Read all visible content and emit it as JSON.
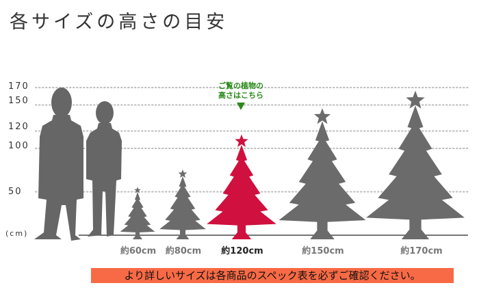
{
  "title": "各サイズの高さの目安",
  "axis": {
    "unit_label": "(cm)",
    "ticks": [
      "170",
      "150",
      "120",
      "100",
      "50"
    ]
  },
  "highlight_note": {
    "line1": "ご覧の植物の",
    "line2": "高さはこちら",
    "color": "#2a8a1a"
  },
  "trees": [
    {
      "label": "約60cm",
      "height_cm": 60,
      "highlighted": false
    },
    {
      "label": "約80cm",
      "height_cm": 80,
      "highlighted": false
    },
    {
      "label": "約120cm",
      "height_cm": 120,
      "highlighted": true
    },
    {
      "label": "約150cm",
      "height_cm": 150,
      "highlighted": false
    },
    {
      "label": "約170cm",
      "height_cm": 170,
      "highlighted": false
    }
  ],
  "colors": {
    "tree": "#6b6b6b",
    "highlight_tree": "#d0103f",
    "person": "#666666",
    "banner": "#f86a45"
  },
  "banner_text": "より詳しいサイズは各商品のスペック表を必ずご確認ください。"
}
